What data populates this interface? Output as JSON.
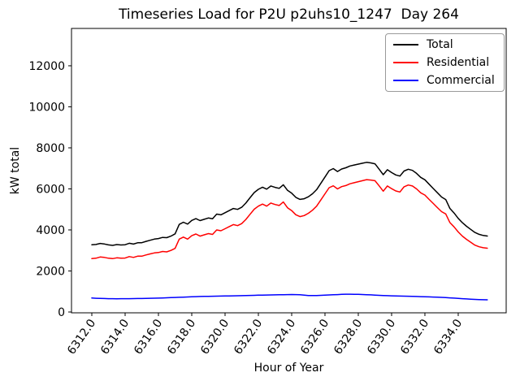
{
  "chart_data": {
    "type": "line",
    "title": "Timeseries Load for P2U p2uhs10_1247  Day 264",
    "xlabel": "Hour of Year",
    "ylabel": "kW total",
    "xlim": [
      6310.78,
      6336.88
    ],
    "ylim": [
      -40,
      13820
    ],
    "grid": false,
    "legend_position": "upper right",
    "x_tick_values": [
      6312,
      6314,
      6316,
      6318,
      6320,
      6322,
      6324,
      6326,
      6328,
      6330,
      6332,
      6334
    ],
    "x_tick_labels": [
      "6312.0",
      "6314.0",
      "6316.0",
      "6318.0",
      "6320.0",
      "6322.0",
      "6324.0",
      "6326.0",
      "6328.0",
      "6330.0",
      "6332.0",
      "6334.0"
    ],
    "y_tick_values": [
      0,
      2000,
      4000,
      6000,
      8000,
      10000,
      12000
    ],
    "y_tick_labels": [
      "0",
      "2000",
      "4000",
      "6000",
      "8000",
      "10000",
      "12000"
    ],
    "x": [
      6312.0,
      6312.25,
      6312.5,
      6312.75,
      6313.0,
      6313.25,
      6313.5,
      6313.75,
      6314.0,
      6314.25,
      6314.5,
      6314.75,
      6315.0,
      6315.25,
      6315.5,
      6315.75,
      6316.0,
      6316.25,
      6316.5,
      6316.75,
      6317.0,
      6317.25,
      6317.5,
      6317.75,
      6318.0,
      6318.25,
      6318.5,
      6318.75,
      6319.0,
      6319.25,
      6319.5,
      6319.75,
      6320.0,
      6320.25,
      6320.5,
      6320.75,
      6321.0,
      6321.25,
      6321.5,
      6321.75,
      6322.0,
      6322.25,
      6322.5,
      6322.75,
      6323.0,
      6323.25,
      6323.5,
      6323.75,
      6324.0,
      6324.25,
      6324.5,
      6324.75,
      6325.0,
      6325.25,
      6325.5,
      6325.75,
      6326.0,
      6326.25,
      6326.5,
      6326.75,
      6327.0,
      6327.25,
      6327.5,
      6327.75,
      6328.0,
      6328.25,
      6328.5,
      6328.75,
      6329.0,
      6329.25,
      6329.5,
      6329.75,
      6330.0,
      6330.25,
      6330.5,
      6330.75,
      6331.0,
      6331.25,
      6331.5,
      6331.75,
      6332.0,
      6332.25,
      6332.5,
      6332.75,
      6333.0,
      6333.25,
      6333.5,
      6333.75,
      6334.0,
      6334.25,
      6334.5,
      6334.75,
      6335.0,
      6335.25,
      6335.5,
      6335.75
    ],
    "series": [
      {
        "name": "Total",
        "color": "#000000",
        "values": [
          3280,
          3290,
          3340,
          3315,
          3270,
          3248,
          3285,
          3268,
          3280,
          3348,
          3312,
          3375,
          3378,
          3442,
          3498,
          3552,
          3578,
          3635,
          3622,
          3700,
          3810,
          4268,
          4376,
          4284,
          4462,
          4548,
          4454,
          4518,
          4582,
          4546,
          4770,
          4734,
          4838,
          4942,
          5046,
          5000,
          5105,
          5310,
          5566,
          5822,
          5978,
          6082,
          5986,
          6140,
          6074,
          6028,
          6202,
          5928,
          5790,
          5586,
          5488,
          5520,
          5615,
          5760,
          5965,
          6272,
          6580,
          6890,
          6990,
          6848,
          6970,
          7028,
          7115,
          7162,
          7208,
          7252,
          7295,
          7265,
          7222,
          6962,
          6692,
          6934,
          6796,
          6680,
          6625,
          6872,
          6958,
          6902,
          6756,
          6560,
          6444,
          6228,
          6020,
          5812,
          5602,
          5480,
          5048,
          4825,
          4562,
          4350,
          4178,
          4026,
          3875,
          3785,
          3728,
          3702
        ]
      },
      {
        "name": "Residential",
        "color": "#ff0000",
        "values": [
          2600,
          2620,
          2680,
          2660,
          2620,
          2600,
          2640,
          2620,
          2630,
          2700,
          2660,
          2720,
          2720,
          2780,
          2830,
          2880,
          2900,
          2950,
          2930,
          3000,
          3100,
          3550,
          3650,
          3550,
          3720,
          3800,
          3700,
          3760,
          3820,
          3780,
          4000,
          3960,
          4060,
          4160,
          4260,
          4210,
          4310,
          4510,
          4760,
          5010,
          5160,
          5260,
          5160,
          5310,
          5240,
          5190,
          5360,
          5080,
          4940,
          4740,
          4650,
          4700,
          4810,
          4960,
          5160,
          5460,
          5760,
          6060,
          6150,
          6000,
          6110,
          6160,
          6250,
          6300,
          6350,
          6400,
          6450,
          6430,
          6400,
          6150,
          5890,
          6140,
          6010,
          5900,
          5850,
          6100,
          6190,
          6140,
          6000,
          5810,
          5700,
          5490,
          5290,
          5090,
          4890,
          4780,
          4360,
          4150,
          3900,
          3700,
          3540,
          3400,
          3260,
          3180,
          3130,
          3110
        ]
      },
      {
        "name": "Commercial",
        "color": "#0000ff",
        "values": [
          680,
          670,
          660,
          655,
          650,
          648,
          645,
          648,
          650,
          648,
          652,
          655,
          658,
          662,
          668,
          672,
          678,
          685,
          692,
          700,
          710,
          718,
          726,
          734,
          742,
          748,
          754,
          758,
          762,
          766,
          770,
          774,
          778,
          782,
          786,
          790,
          795,
          800,
          806,
          812,
          818,
          822,
          826,
          830,
          834,
          838,
          842,
          848,
          850,
          846,
          838,
          820,
          805,
          800,
          805,
          812,
          820,
          830,
          840,
          848,
          860,
          868,
          865,
          862,
          858,
          852,
          845,
          835,
          822,
          812,
          802,
          794,
          786,
          780,
          775,
          772,
          768,
          762,
          756,
          750,
          744,
          738,
          730,
          722,
          712,
          700,
          688,
          675,
          662,
          650,
          638,
          626,
          615,
          605,
          598,
          592
        ]
      }
    ]
  }
}
